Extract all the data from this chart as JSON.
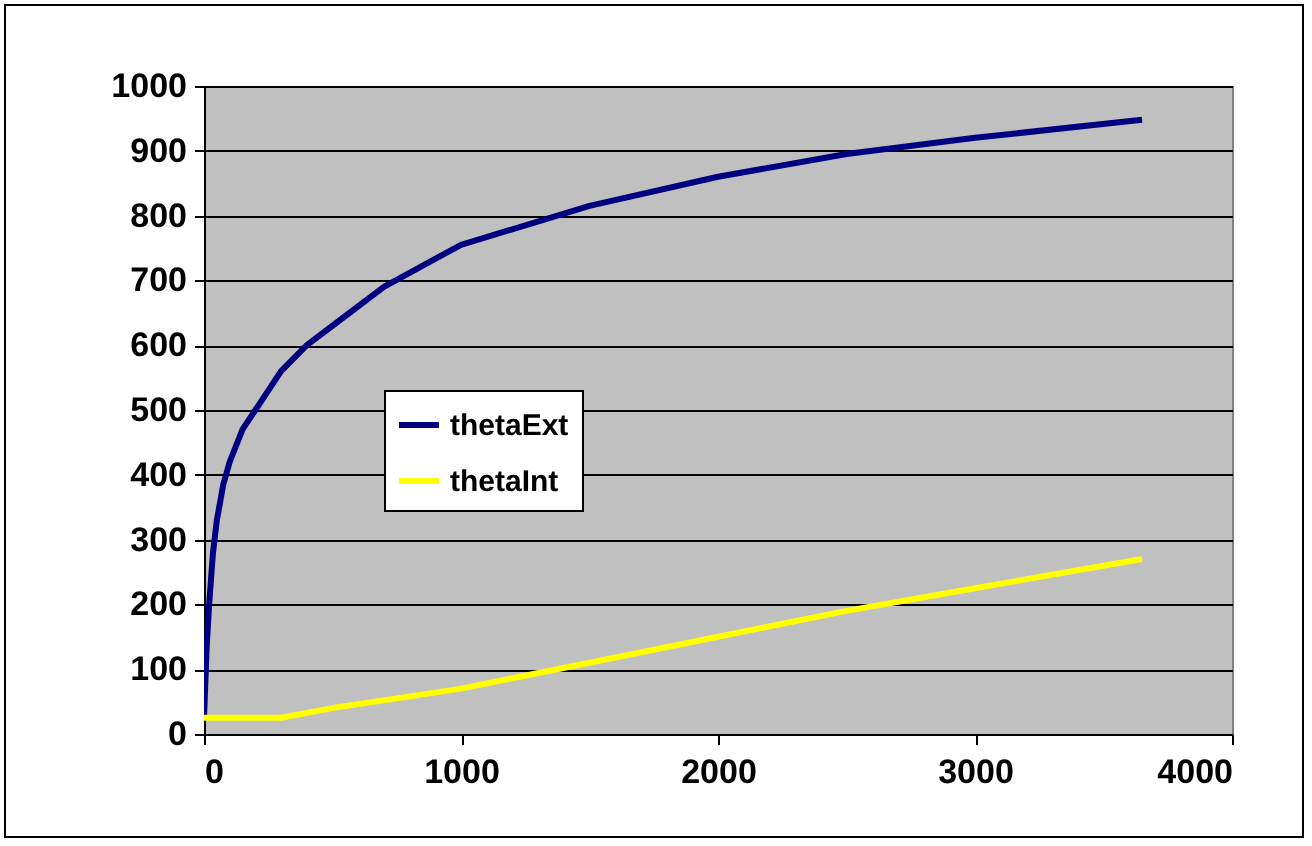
{
  "chart_data": {
    "type": "line",
    "xlim": [
      0,
      4000
    ],
    "xticks": [
      0,
      1000,
      2000,
      3000,
      4000
    ],
    "ylim": [
      0,
      1000
    ],
    "yticks": [
      0,
      100,
      200,
      300,
      400,
      500,
      600,
      700,
      800,
      900,
      1000
    ],
    "grid": "y",
    "legend": "left",
    "line_style": "solid",
    "series": [
      {
        "name": "thetaExt",
        "color": "#000080",
        "x": [
          0,
          10,
          20,
          35,
          50,
          75,
          100,
          150,
          200,
          300,
          400,
          500,
          700,
          1000,
          1500,
          2000,
          2500,
          3000,
          3650
        ],
        "values": [
          25,
          130,
          200,
          280,
          330,
          385,
          420,
          470,
          500,
          560,
          600,
          630,
          690,
          755,
          815,
          860,
          895,
          920,
          948
        ]
      },
      {
        "name": "thetaInt",
        "color": "#ffff00",
        "x": [
          0,
          300,
          500,
          750,
          1000,
          1500,
          2000,
          2500,
          3000,
          3650
        ],
        "values": [
          25,
          25,
          40,
          55,
          70,
          110,
          150,
          190,
          225,
          270
        ]
      }
    ]
  }
}
